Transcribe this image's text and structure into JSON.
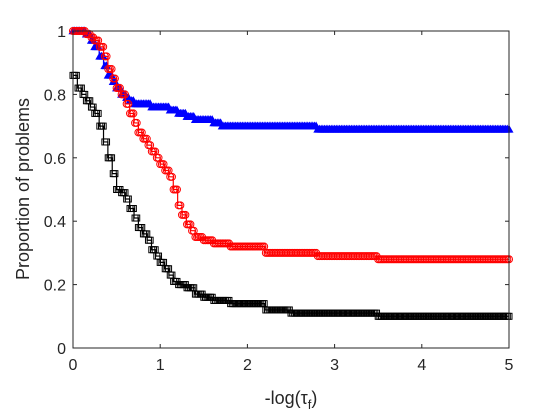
{
  "chart_data": {
    "type": "line",
    "title": "",
    "xlabel": "-log(τ_f)",
    "xlabel_main": "-log(τ",
    "xlabel_sub": "f",
    "xlabel_close": ")",
    "ylabel": "Proportion of problems",
    "xlim": [
      0,
      5
    ],
    "ylim": [
      0,
      1
    ],
    "xticks": [
      0,
      1,
      2,
      3,
      4,
      5
    ],
    "yticks": [
      0,
      0.2,
      0.4,
      0.6,
      0.8,
      1
    ],
    "xtick_labels": [
      "0",
      "1",
      "2",
      "3",
      "4",
      "5"
    ],
    "ytick_labels": [
      "0",
      "0.2",
      "0.4",
      "0.6",
      "0.8",
      "1"
    ],
    "grid": false,
    "legend": "none",
    "series": [
      {
        "color": "#0000ff",
        "marker": "triangle",
        "x": [
          0,
          0.05,
          0.1,
          0.15,
          0.2,
          0.25,
          0.3,
          0.35,
          0.4,
          0.45,
          0.5,
          0.55,
          0.6,
          0.65,
          0.7,
          0.8,
          0.9,
          1.0,
          1.1,
          1.2,
          1.3,
          1.4,
          1.5,
          1.6,
          1.7,
          1.8,
          2.0,
          2.2,
          2.5,
          2.8,
          3.0,
          3.2,
          3.5,
          4.0,
          4.5,
          5.0
        ],
        "y": [
          1.0,
          1.0,
          1.0,
          0.99,
          0.97,
          0.95,
          0.92,
          0.89,
          0.86,
          0.84,
          0.82,
          0.8,
          0.79,
          0.78,
          0.77,
          0.77,
          0.76,
          0.76,
          0.75,
          0.74,
          0.73,
          0.72,
          0.72,
          0.71,
          0.7,
          0.7,
          0.7,
          0.7,
          0.7,
          0.69,
          0.69,
          0.69,
          0.69,
          0.69,
          0.69,
          0.69
        ]
      },
      {
        "color": "#ff0000",
        "marker": "circle",
        "x": [
          0,
          0.05,
          0.1,
          0.15,
          0.2,
          0.25,
          0.3,
          0.35,
          0.4,
          0.45,
          0.5,
          0.55,
          0.6,
          0.65,
          0.7,
          0.75,
          0.8,
          0.85,
          0.9,
          0.95,
          1.0,
          1.05,
          1.1,
          1.15,
          1.2,
          1.25,
          1.3,
          1.35,
          1.4,
          1.5,
          1.6,
          1.7,
          1.8,
          2.0,
          2.2,
          2.5,
          2.8,
          3.0,
          3.5,
          4.0,
          4.5,
          5.0
        ],
        "y": [
          1.0,
          1.0,
          1.0,
          0.99,
          0.98,
          0.97,
          0.95,
          0.92,
          0.88,
          0.85,
          0.82,
          0.8,
          0.77,
          0.74,
          0.71,
          0.68,
          0.66,
          0.64,
          0.62,
          0.6,
          0.58,
          0.56,
          0.54,
          0.5,
          0.45,
          0.42,
          0.39,
          0.37,
          0.35,
          0.34,
          0.33,
          0.33,
          0.32,
          0.32,
          0.3,
          0.3,
          0.29,
          0.29,
          0.28,
          0.28,
          0.28,
          0.28
        ]
      },
      {
        "color": "#000000",
        "marker": "square",
        "x": [
          0,
          0.05,
          0.1,
          0.15,
          0.2,
          0.25,
          0.3,
          0.35,
          0.4,
          0.45,
          0.5,
          0.55,
          0.6,
          0.65,
          0.7,
          0.75,
          0.8,
          0.85,
          0.9,
          0.95,
          1.0,
          1.05,
          1.1,
          1.15,
          1.2,
          1.3,
          1.4,
          1.5,
          1.6,
          1.8,
          2.0,
          2.2,
          2.5,
          3.0,
          3.5,
          4.0,
          4.5,
          5.0
        ],
        "y": [
          0.86,
          0.82,
          0.8,
          0.78,
          0.76,
          0.74,
          0.7,
          0.65,
          0.6,
          0.55,
          0.5,
          0.49,
          0.47,
          0.44,
          0.41,
          0.38,
          0.36,
          0.34,
          0.31,
          0.29,
          0.27,
          0.25,
          0.23,
          0.21,
          0.2,
          0.19,
          0.17,
          0.16,
          0.15,
          0.14,
          0.14,
          0.12,
          0.11,
          0.11,
          0.1,
          0.1,
          0.1,
          0.1
        ]
      }
    ]
  }
}
